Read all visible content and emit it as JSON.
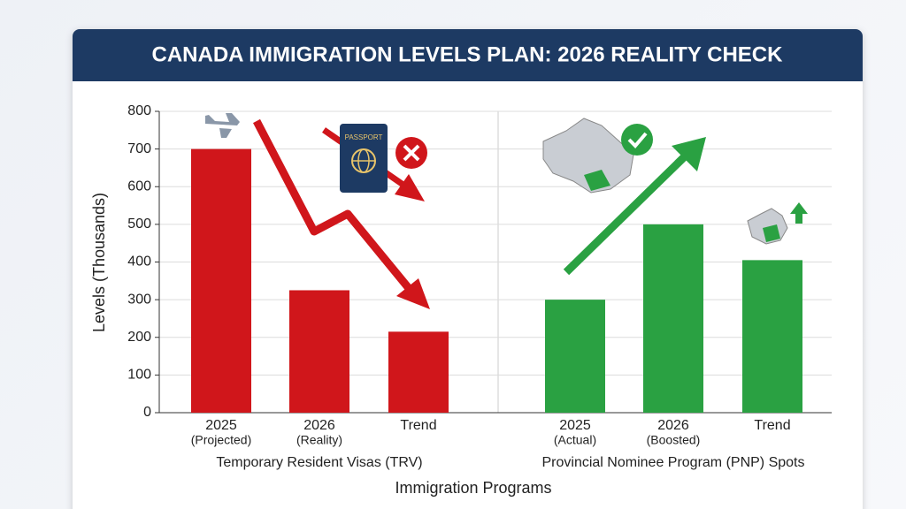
{
  "chart_data": {
    "type": "grouped-bar",
    "title": "CANADA IMMIGRATION LEVELS PLAN: 2026 REALITY CHECK",
    "y_label": "Levels (Thousands)",
    "x_label": "Immigration Programs",
    "ylim": [
      0,
      800
    ],
    "yticks": [
      0,
      100,
      200,
      300,
      400,
      500,
      600,
      700,
      800
    ],
    "grid": true,
    "groups": [
      {
        "name": "Temporary Resident Visas (TRV)",
        "color": "#d0161b",
        "categories": [
          "2025",
          "2026",
          "Trend"
        ],
        "notes": [
          "(Projected)",
          "(Reality)",
          null
        ],
        "values": [
          700,
          325,
          215
        ]
      },
      {
        "name": "Provincial Nominee Program (PNP) Spots",
        "color": "#2aa142",
        "categories": [
          "2025",
          "2026",
          "Trend"
        ],
        "notes": [
          "(Actual)",
          "(Boosted)",
          null
        ],
        "values": [
          300,
          500,
          405
        ]
      }
    ]
  }
}
